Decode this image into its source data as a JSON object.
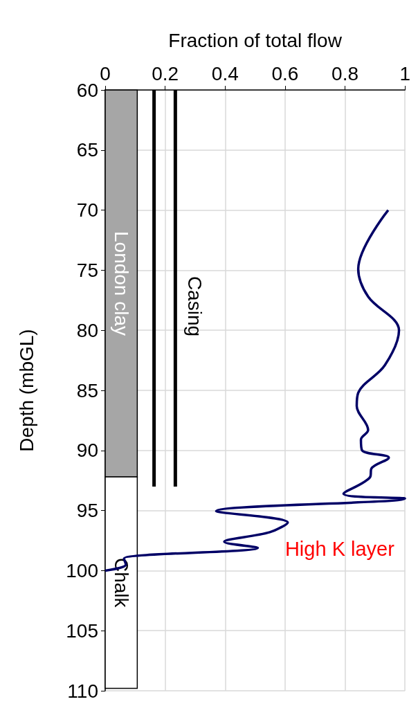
{
  "chart_data": {
    "type": "line",
    "xlabel": "Fraction of total flow",
    "ylabel": "Depth (mbGL)",
    "xlim": [
      0,
      1
    ],
    "xticks": [
      0,
      0.2,
      0.4,
      0.6,
      0.8,
      1
    ],
    "ylim": [
      110,
      60
    ],
    "yticks": [
      60,
      65,
      70,
      75,
      80,
      85,
      90,
      95,
      100,
      105,
      110
    ],
    "grid": true,
    "marker": "none",
    "line_style": "solid",
    "series": [
      {
        "color": "#000066",
        "x": [
          0.944,
          0.844,
          0.877,
          0.98,
          0.933,
          0.844,
          0.839,
          0.877,
          0.853,
          0.857,
          0.946,
          0.888,
          0.884,
          0.795,
          1.0,
          0.37,
          0.609,
          0.549,
          0.397,
          0.509,
          0.0625,
          0.069,
          0
        ],
        "values": [
          70,
          74.9,
          77.2,
          80,
          82.9,
          85.2,
          86.3,
          88.3,
          89.1,
          90,
          90.6,
          91.5,
          92.2,
          93.6,
          94,
          95.05,
          96,
          96.8,
          97.6,
          98.1,
          99,
          99.5,
          100
        ]
      },
      {
        "color": "#000000",
        "x": [
          0.163,
          0.163
        ],
        "values": [
          60,
          93
        ]
      },
      {
        "color": "#000000",
        "x": [
          0.234,
          0.234
        ],
        "values": [
          60,
          93
        ]
      }
    ],
    "bands": [
      {
        "axis": "y",
        "from": 60,
        "to": 92.2,
        "label": "London clay",
        "color": "#a6a6a6"
      },
      {
        "axis": "y",
        "from": 92.2,
        "to": 109.8,
        "label": "Chalk",
        "color": "#ffffff"
      }
    ],
    "annotations": [
      "Casing",
      "High K layer"
    ]
  }
}
